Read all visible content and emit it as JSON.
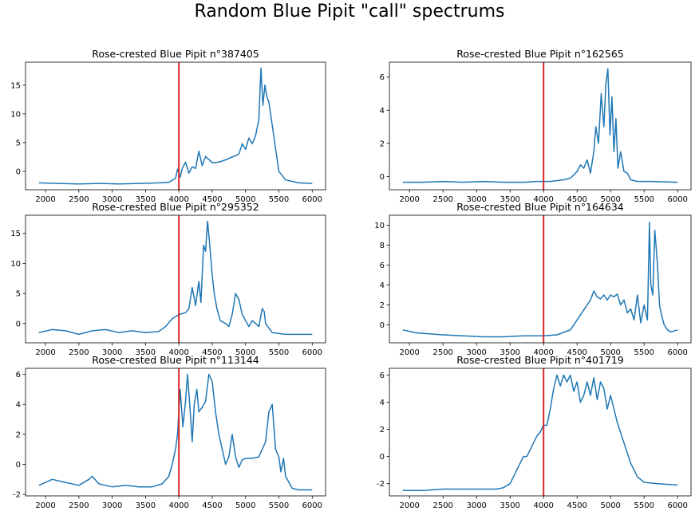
{
  "suptitle": "Random Blue Pipit \"call\" spectrums",
  "colors": {
    "line": "#1f77b4",
    "marker": "#d62728"
  },
  "chart_data": [
    {
      "type": "line",
      "title": "Rose-crested Blue Pipit n°387405",
      "xlim": [
        1700,
        6200
      ],
      "ylim": [
        -3.2,
        19
      ],
      "xticks": [
        2000,
        2500,
        3000,
        3500,
        4000,
        4500,
        5000,
        5500,
        6000
      ],
      "yticks": [
        0,
        5,
        10,
        15
      ],
      "vline": 4000,
      "x": [
        1900,
        2200,
        2500,
        2800,
        3100,
        3400,
        3700,
        3850,
        3950,
        3980,
        4020,
        4050,
        4100,
        4150,
        4200,
        4250,
        4300,
        4350,
        4400,
        4500,
        4600,
        4700,
        4800,
        4900,
        4950,
        5000,
        5050,
        5100,
        5150,
        5200,
        5230,
        5260,
        5290,
        5320,
        5350,
        5400,
        5450,
        5500,
        5600,
        5800,
        6000
      ],
      "y": [
        -2.0,
        -2.1,
        -2.2,
        -2.1,
        -2.2,
        -2.1,
        -2.0,
        -1.9,
        -1.2,
        0.4,
        -1.0,
        0.5,
        1.6,
        -0.3,
        0.8,
        0.5,
        3.5,
        1.0,
        2.6,
        1.5,
        1.6,
        2.0,
        2.5,
        3.0,
        4.8,
        3.8,
        5.8,
        4.8,
        6.2,
        9.0,
        18.0,
        11.5,
        15.0,
        13.0,
        12.0,
        8.0,
        4.0,
        0.0,
        -1.5,
        -2.0,
        -2.1
      ]
    },
    {
      "type": "line",
      "title": "Rose-crested Blue Pipit n°162565",
      "xlim": [
        1700,
        6200
      ],
      "ylim": [
        -0.8,
        6.9
      ],
      "xticks": [
        2000,
        2500,
        3000,
        3500,
        4000,
        4500,
        5000,
        5500,
        6000
      ],
      "yticks": [
        0,
        2,
        4,
        6
      ],
      "vline": 4000,
      "x": [
        1900,
        2200,
        2500,
        2800,
        3100,
        3400,
        3700,
        3900,
        4100,
        4300,
        4400,
        4500,
        4550,
        4600,
        4650,
        4700,
        4750,
        4780,
        4820,
        4860,
        4900,
        4930,
        4960,
        4990,
        5020,
        5050,
        5080,
        5110,
        5150,
        5200,
        5250,
        5300,
        5400,
        5600,
        6000
      ],
      "y": [
        -0.35,
        -0.35,
        -0.3,
        -0.35,
        -0.3,
        -0.35,
        -0.35,
        -0.3,
        -0.3,
        -0.2,
        -0.1,
        0.3,
        0.7,
        0.5,
        1.0,
        0.2,
        1.5,
        3.0,
        2.0,
        5.0,
        3.0,
        5.6,
        6.5,
        2.5,
        4.8,
        1.5,
        3.5,
        0.5,
        1.5,
        0.3,
        0.2,
        -0.2,
        -0.3,
        -0.3,
        -0.35
      ]
    },
    {
      "type": "line",
      "title": "Rose-crested Blue Pipit n°295352",
      "xlim": [
        1700,
        6200
      ],
      "ylim": [
        -3.2,
        18
      ],
      "xticks": [
        2000,
        2500,
        3000,
        3500,
        4000,
        4500,
        5000,
        5500,
        6000
      ],
      "yticks": [
        0,
        5,
        10,
        15
      ],
      "vline": 4000,
      "x": [
        1900,
        2100,
        2300,
        2500,
        2700,
        2900,
        3100,
        3300,
        3500,
        3700,
        3800,
        3900,
        4000,
        4100,
        4150,
        4200,
        4250,
        4300,
        4330,
        4370,
        4400,
        4430,
        4460,
        4500,
        4530,
        4570,
        4620,
        4700,
        4750,
        4800,
        4850,
        4900,
        4950,
        5000,
        5050,
        5100,
        5150,
        5200,
        5250,
        5280,
        5300,
        5400,
        5600,
        6000
      ],
      "y": [
        -1.5,
        -1.0,
        -1.2,
        -1.8,
        -1.2,
        -1.0,
        -1.5,
        -1.2,
        -1.5,
        -1.3,
        -0.5,
        0.8,
        1.5,
        1.8,
        2.5,
        6.0,
        3.0,
        7.0,
        3.5,
        13.0,
        12.0,
        17.0,
        13.5,
        8.0,
        5.0,
        2.5,
        0.5,
        0.0,
        -0.5,
        1.5,
        5.0,
        4.0,
        1.5,
        0.5,
        -0.5,
        0.5,
        0.0,
        -0.5,
        2.5,
        2.0,
        0.0,
        -1.5,
        -1.8,
        -1.8
      ]
    },
    {
      "type": "line",
      "title": "Rose-crested Blue Pipit n°164634",
      "xlim": [
        1700,
        6200
      ],
      "ylim": [
        -1.8,
        11
      ],
      "xticks": [
        2000,
        2500,
        3000,
        3500,
        4000,
        4500,
        5000,
        5500,
        6000
      ],
      "yticks": [
        0,
        2,
        4,
        6,
        8,
        10
      ],
      "vline": 4000,
      "x": [
        1900,
        2100,
        2300,
        2500,
        2800,
        3100,
        3400,
        3700,
        4000,
        4200,
        4400,
        4500,
        4600,
        4700,
        4750,
        4800,
        4850,
        4900,
        4950,
        5000,
        5050,
        5100,
        5150,
        5200,
        5250,
        5300,
        5350,
        5400,
        5450,
        5500,
        5550,
        5580,
        5600,
        5630,
        5660,
        5700,
        5730,
        5760,
        5800,
        5850,
        5900,
        6000
      ],
      "y": [
        -0.5,
        -0.8,
        -0.9,
        -1.0,
        -1.1,
        -1.2,
        -1.2,
        -1.1,
        -1.1,
        -1.0,
        -0.5,
        0.5,
        1.5,
        2.5,
        3.4,
        2.8,
        2.6,
        3.0,
        2.5,
        3.0,
        2.8,
        3.1,
        2.0,
        2.5,
        1.2,
        1.6,
        0.5,
        3.0,
        0.2,
        2.0,
        0.5,
        10.3,
        4.0,
        3.0,
        9.5,
        6.0,
        2.0,
        1.0,
        0.0,
        -0.5,
        -0.7,
        -0.5
      ]
    },
    {
      "type": "line",
      "title": "Rose-crested Blue Pipit n°113144",
      "xlim": [
        1700,
        6200
      ],
      "ylim": [
        -2.1,
        6.4
      ],
      "xticks": [
        2000,
        2500,
        3000,
        3500,
        4000,
        4500,
        5000,
        5500,
        6000
      ],
      "yticks": [
        -2,
        0,
        2,
        4,
        6
      ],
      "vline": 4000,
      "x": [
        1900,
        2100,
        2300,
        2500,
        2650,
        2700,
        2800,
        3000,
        3200,
        3400,
        3600,
        3750,
        3850,
        3900,
        3950,
        3980,
        4020,
        4060,
        4100,
        4130,
        4170,
        4200,
        4230,
        4270,
        4300,
        4350,
        4400,
        4450,
        4500,
        4550,
        4600,
        4650,
        4700,
        4750,
        4800,
        4850,
        4900,
        4950,
        5000,
        5100,
        5200,
        5300,
        5350,
        5400,
        5450,
        5500,
        5530,
        5570,
        5600,
        5700,
        5800,
        6000
      ],
      "y": [
        -1.4,
        -1.0,
        -1.2,
        -1.4,
        -1.0,
        -0.8,
        -1.3,
        -1.5,
        -1.4,
        -1.5,
        -1.5,
        -1.3,
        -0.8,
        0.0,
        1.0,
        2.0,
        5.0,
        2.5,
        4.2,
        6.0,
        3.5,
        1.5,
        4.0,
        5.0,
        3.5,
        3.8,
        4.2,
        6.0,
        5.5,
        3.5,
        2.0,
        1.0,
        0.0,
        0.5,
        2.0,
        0.5,
        -0.2,
        0.3,
        0.4,
        0.4,
        0.5,
        1.5,
        3.5,
        4.0,
        1.0,
        0.5,
        -0.5,
        0.4,
        -0.8,
        -1.6,
        -1.7,
        -1.7
      ]
    },
    {
      "type": "line",
      "title": "Rose-crested Blue Pipit n°401719",
      "xlim": [
        1700,
        6200
      ],
      "ylim": [
        -2.9,
        6.5
      ],
      "xticks": [
        2000,
        2500,
        3000,
        3500,
        4000,
        4500,
        5000,
        5500,
        6000
      ],
      "yticks": [
        -2,
        0,
        2,
        4,
        6
      ],
      "vline": 4000,
      "x": [
        1900,
        2200,
        2500,
        2800,
        3100,
        3300,
        3400,
        3500,
        3550,
        3600,
        3650,
        3700,
        3750,
        3800,
        3850,
        3900,
        3950,
        4000,
        4050,
        4100,
        4150,
        4200,
        4250,
        4300,
        4350,
        4400,
        4450,
        4500,
        4550,
        4600,
        4650,
        4700,
        4750,
        4800,
        4850,
        4900,
        4950,
        5000,
        5050,
        5100,
        5200,
        5300,
        5400,
        5500,
        5700,
        6000
      ],
      "y": [
        -2.5,
        -2.5,
        -2.4,
        -2.4,
        -2.4,
        -2.4,
        -2.3,
        -2.0,
        -1.5,
        -1.0,
        -0.5,
        0.0,
        0.0,
        0.5,
        1.0,
        1.5,
        1.8,
        2.3,
        2.3,
        3.5,
        5.0,
        6.0,
        5.2,
        6.0,
        5.5,
        6.0,
        4.8,
        5.5,
        4.0,
        4.5,
        5.5,
        4.5,
        5.8,
        4.2,
        5.5,
        5.0,
        3.5,
        4.5,
        3.5,
        2.5,
        1.0,
        -0.5,
        -1.5,
        -1.9,
        -2.0,
        -2.1
      ]
    }
  ]
}
